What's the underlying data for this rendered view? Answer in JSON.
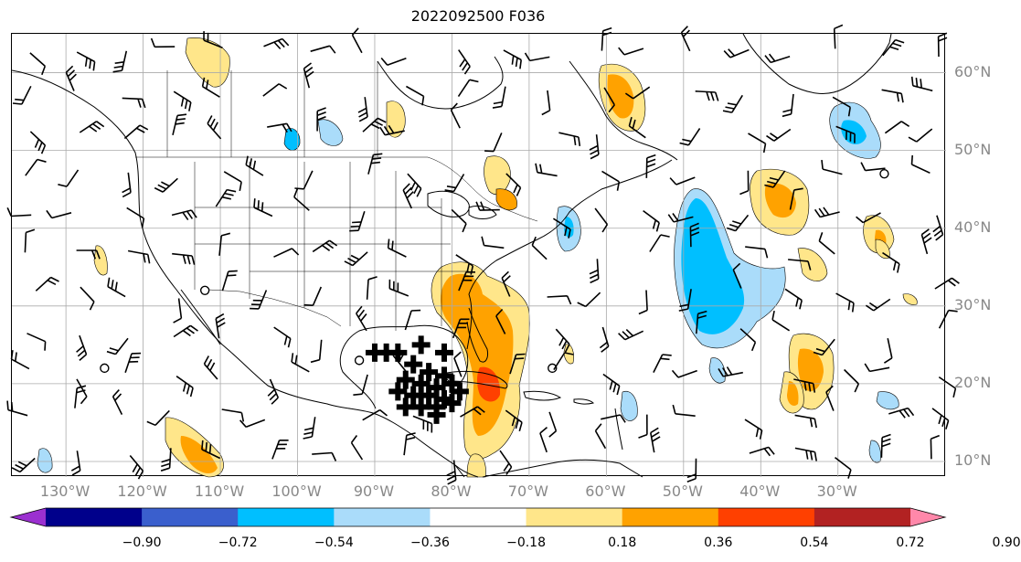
{
  "title": "2022092500 F036",
  "lat_labels": [
    {
      "label": "60°N",
      "lat": 60
    },
    {
      "label": "50°N",
      "lat": 50
    },
    {
      "label": "40°N",
      "lat": 40
    },
    {
      "label": "30°N",
      "lat": 30
    },
    {
      "label": "20°N",
      "lat": 20
    },
    {
      "label": "10°N",
      "lat": 10
    }
  ],
  "lon_labels": [
    {
      "label": "130°W",
      "lon": -130
    },
    {
      "label": "120°W",
      "lon": -120
    },
    {
      "label": "110°W",
      "lon": -110
    },
    {
      "label": "100°W",
      "lon": -100
    },
    {
      "label": "90°W",
      "lon": -90
    },
    {
      "label": "80°W",
      "lon": -80
    },
    {
      "label": "70°W",
      "lon": -70
    },
    {
      "label": "60°W",
      "lon": -60
    },
    {
      "label": "50°W",
      "lon": -50
    },
    {
      "label": "40°W",
      "lon": -40
    },
    {
      "label": "30°W",
      "lon": -30
    }
  ],
  "colorbar": {
    "ticks": [
      "−0.90",
      "−0.72",
      "−0.54",
      "−0.36",
      "−0.18",
      "0.18",
      "0.36",
      "0.54",
      "0.72",
      "0.90"
    ],
    "colors": [
      "#9b30d0",
      "#00008b",
      "#3a5fcd",
      "#00bfff",
      "#aadcfa",
      "#ffffff",
      "#ffe68a",
      "#ffa200",
      "#ff4000",
      "#b22222",
      "#ff88aa"
    ]
  },
  "map": {
    "lon_range": [
      -137,
      -16
    ],
    "lat_range": [
      8,
      65
    ],
    "colors": {
      "light_yellow": "#ffe68a",
      "orange": "#ffa200",
      "red_orange": "#ff4000",
      "sky_blue": "#00bfff",
      "light_blue": "#aadcfa"
    }
  }
}
